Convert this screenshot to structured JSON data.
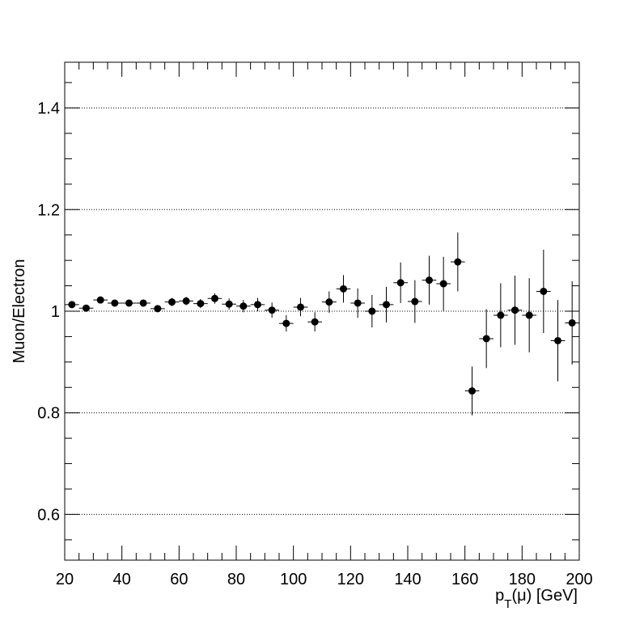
{
  "chart_data": {
    "type": "scatter",
    "title": "",
    "xlabel": "p_T(μ) [GeV]",
    "xlabel_main": "p",
    "xlabel_sub": "T",
    "xlabel_rest": "(μ) [GeV]",
    "ylabel": "Muon/Electron",
    "xlim": [
      20,
      200
    ],
    "ylim": [
      0.51,
      1.49
    ],
    "grid": "y-major-dotted",
    "legend": "none",
    "marker_color": "#000000",
    "x_ticks": [
      "20",
      "40",
      "60",
      "80",
      "100",
      "120",
      "140",
      "160",
      "180",
      "200"
    ],
    "y_ticks": [
      "0.6",
      "0.8",
      "1",
      "1.2",
      "1.4"
    ],
    "bin_half_width": 2.5,
    "series": [
      {
        "x": [
          22.5,
          27.5,
          32.5,
          37.5,
          42.5,
          47.5,
          52.5,
          57.5,
          62.5,
          67.5,
          72.5,
          77.5,
          82.5,
          87.5,
          92.5,
          97.5,
          102.5,
          107.5,
          112.5,
          117.5,
          122.5,
          127.5,
          132.5,
          137.5,
          142.5,
          147.5,
          152.5,
          157.5,
          162.5,
          167.5,
          172.5,
          177.5,
          182.5,
          187.5,
          192.5,
          197.5
        ],
        "y": [
          1.013,
          1.006,
          1.022,
          1.016,
          1.016,
          1.016,
          1.005,
          1.018,
          1.02,
          1.015,
          1.025,
          1.014,
          1.01,
          1.013,
          1.002,
          0.976,
          1.008,
          0.979,
          1.018,
          1.044,
          1.016,
          1.0,
          1.013,
          1.056,
          1.019,
          1.061,
          1.054,
          1.097,
          0.843,
          0.946,
          0.992,
          1.002,
          0.992,
          1.039,
          0.942,
          0.977
        ],
        "yerr": [
          0.005,
          0.005,
          0.006,
          0.006,
          0.006,
          0.007,
          0.007,
          0.008,
          0.008,
          0.009,
          0.01,
          0.011,
          0.012,
          0.013,
          0.015,
          0.016,
          0.018,
          0.019,
          0.021,
          0.027,
          0.029,
          0.032,
          0.035,
          0.04,
          0.042,
          0.048,
          0.053,
          0.058,
          0.048,
          0.058,
          0.063,
          0.068,
          0.073,
          0.082,
          0.08,
          0.082
        ]
      }
    ]
  }
}
